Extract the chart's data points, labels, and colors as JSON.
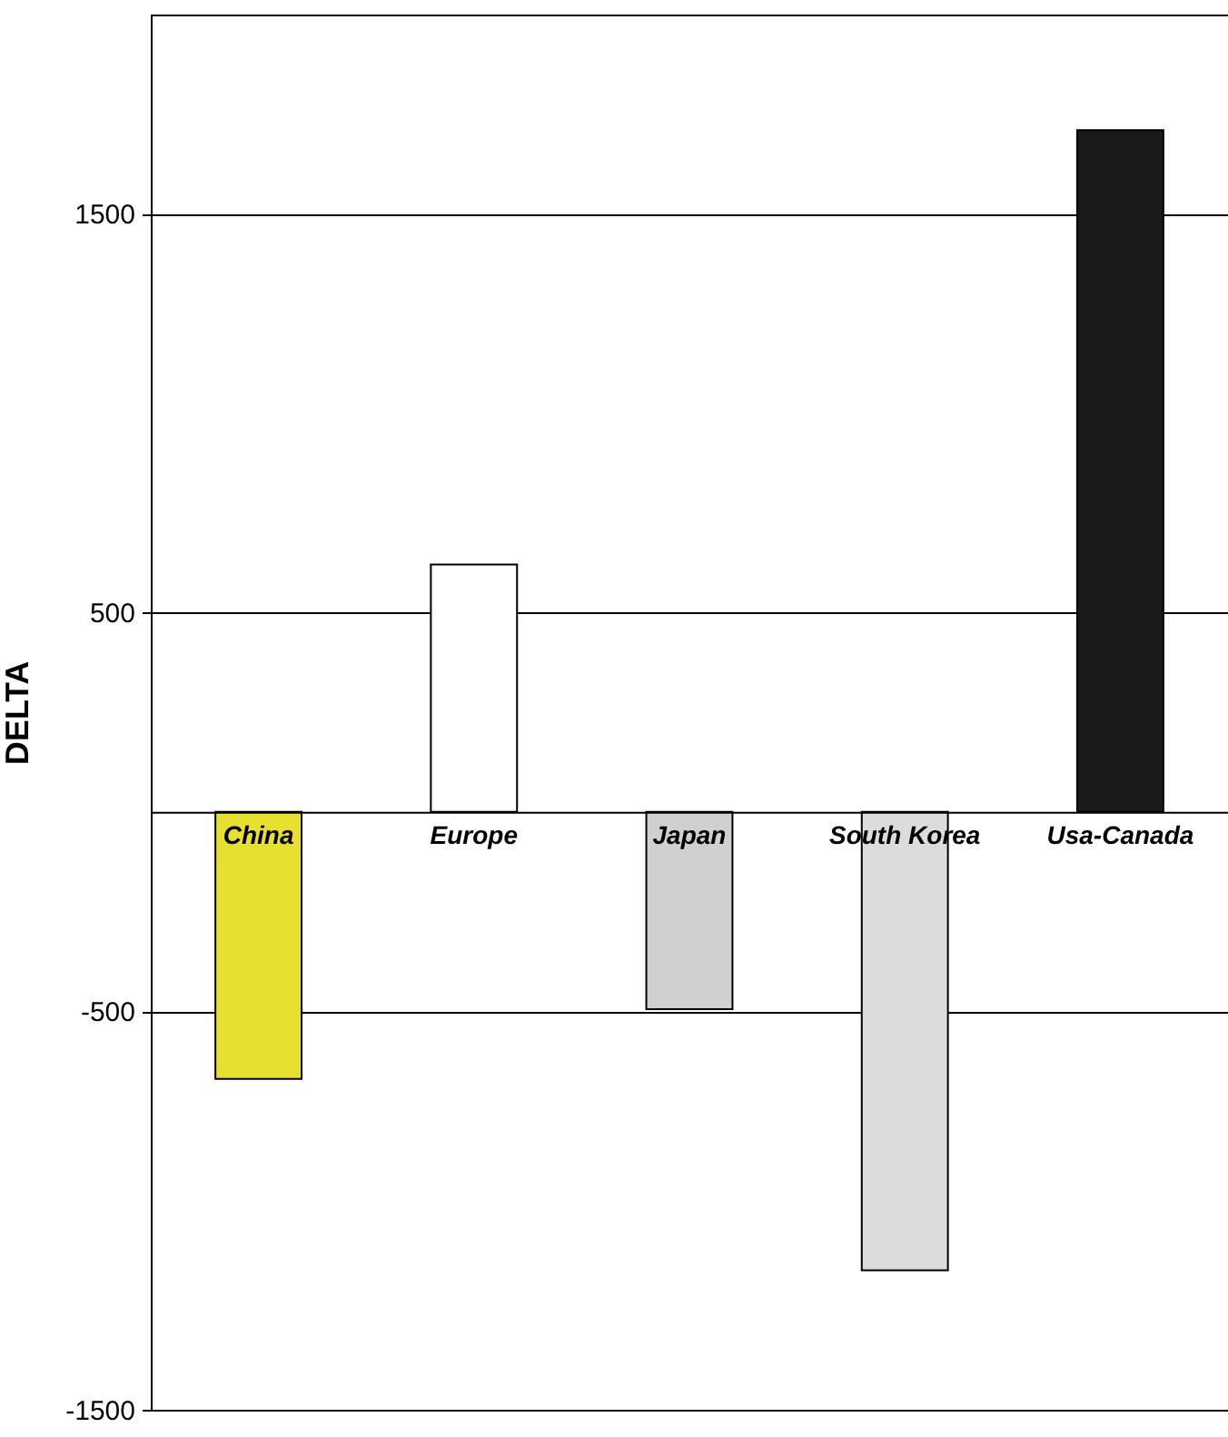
{
  "chart_data": {
    "type": "bar",
    "ylabel": "DELTA",
    "categories": [
      "China",
      "Europe",
      "Japan",
      "South Korea",
      "Usa-Canada"
    ],
    "values": [
      -670,
      620,
      -495,
      -1150,
      1710
    ],
    "colors": [
      "#e8e030",
      "#ffffff",
      "#d0d0d0",
      "#dcdcdc",
      "#1a1a1a"
    ],
    "ylim": [
      -1500,
      2000
    ],
    "yticks": [
      -1500,
      -500,
      500,
      1500
    ],
    "grid": "y"
  }
}
